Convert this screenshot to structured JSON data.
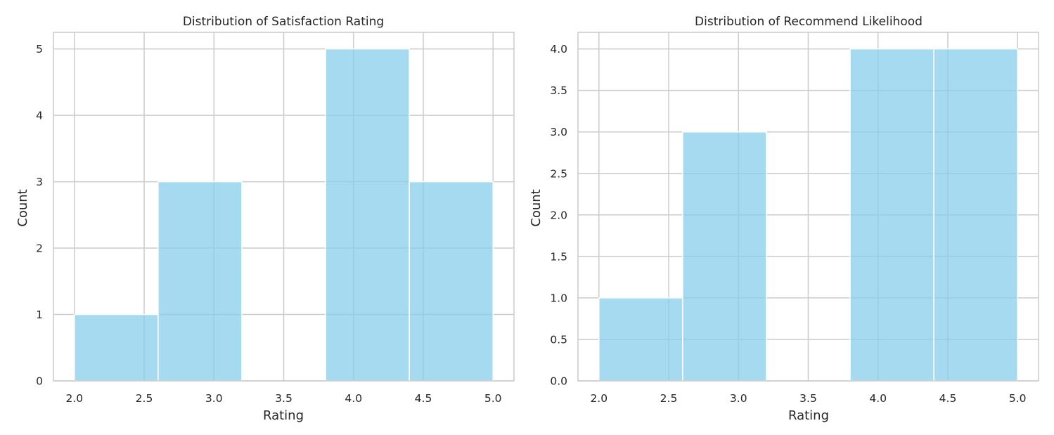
{
  "chart_data": [
    {
      "type": "bar",
      "title": "Distribution of Satisfaction Rating",
      "xlabel": "Rating",
      "ylabel": "Count",
      "bins": [
        {
          "start": 2.0,
          "end": 2.6,
          "count": 1
        },
        {
          "start": 2.6,
          "end": 3.2,
          "count": 3
        },
        {
          "start": 3.2,
          "end": 3.8,
          "count": 0
        },
        {
          "start": 3.8,
          "end": 4.4,
          "count": 5
        },
        {
          "start": 4.4,
          "end": 5.0,
          "count": 3
        }
      ],
      "xlim": [
        1.85,
        5.15
      ],
      "ylim": [
        0,
        5.25
      ],
      "xticks": [
        "2.0",
        "2.5",
        "3.0",
        "3.5",
        "4.0",
        "4.5",
        "5.0"
      ],
      "yticks": [
        "0",
        "1",
        "2",
        "3",
        "4",
        "5"
      ],
      "grid": true,
      "bar_color": "#87CEEB"
    },
    {
      "type": "bar",
      "title": "Distribution of Recommend Likelihood",
      "xlabel": "Rating",
      "ylabel": "Count",
      "bins": [
        {
          "start": 2.0,
          "end": 2.6,
          "count": 1
        },
        {
          "start": 2.6,
          "end": 3.2,
          "count": 3
        },
        {
          "start": 3.2,
          "end": 3.8,
          "count": 0
        },
        {
          "start": 3.8,
          "end": 4.4,
          "count": 4
        },
        {
          "start": 4.4,
          "end": 5.0,
          "count": 4
        }
      ],
      "xlim": [
        1.85,
        5.15
      ],
      "ylim": [
        0,
        4.2
      ],
      "xticks": [
        "2.0",
        "2.5",
        "3.0",
        "3.5",
        "4.0",
        "4.5",
        "5.0"
      ],
      "yticks": [
        "0.0",
        "0.5",
        "1.0",
        "1.5",
        "2.0",
        "2.5",
        "3.0",
        "3.5",
        "4.0"
      ],
      "grid": true,
      "bar_color": "#87CEEB"
    }
  ]
}
